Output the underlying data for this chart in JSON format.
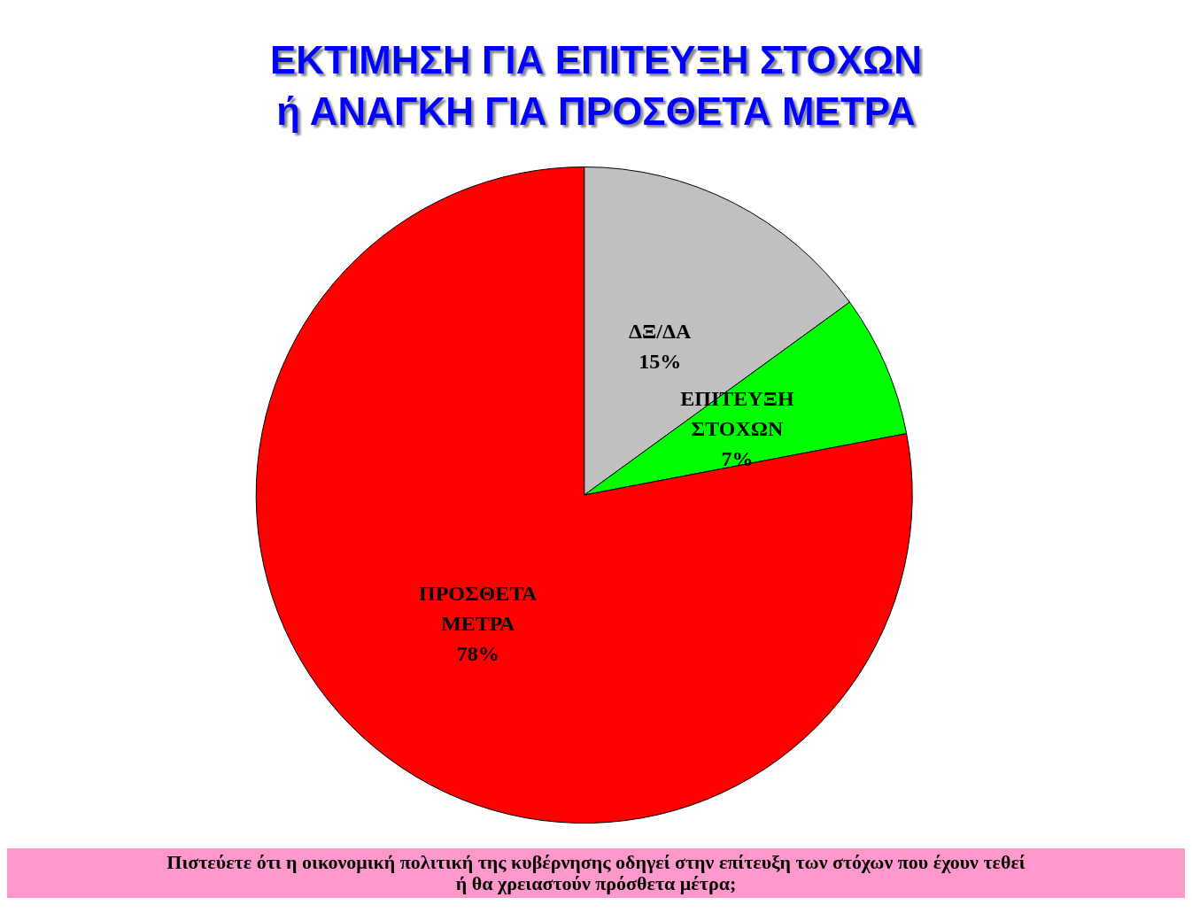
{
  "chart_data": {
    "type": "pie",
    "title": "ΕΚΤΙΜΗΣΗ ΓΙΑ ΕΠΙΤΕΥΞΗ ΣΤΟΧΩΝ\nή ΑΝΑΓΚΗ ΓΙΑ ΠΡΟΣΘΕΤΑ ΜΕΤΡΑ",
    "categories": [
      "ΔΞ/ΔΑ",
      "ΕΠΙΤΕΥΞΗ ΣΤΟΧΩΝ",
      "ΠΡΟΣΘΕΤΑ ΜΕΤΡΑ"
    ],
    "values": [
      15,
      7,
      78
    ],
    "colors": [
      "#c0c0c0",
      "#00ff00",
      "#ff0000"
    ],
    "value_labels": [
      "15%",
      "7%",
      "78%"
    ],
    "legend": false,
    "annotations": [
      "Πιστεύετε ότι η οικονομική πολιτική της κυβέρνησης οδηγεί στην επίτευξη των στόχων που έχουν τεθεί\nή θα χρειαστούν πρόσθετα μέτρα;"
    ]
  }
}
